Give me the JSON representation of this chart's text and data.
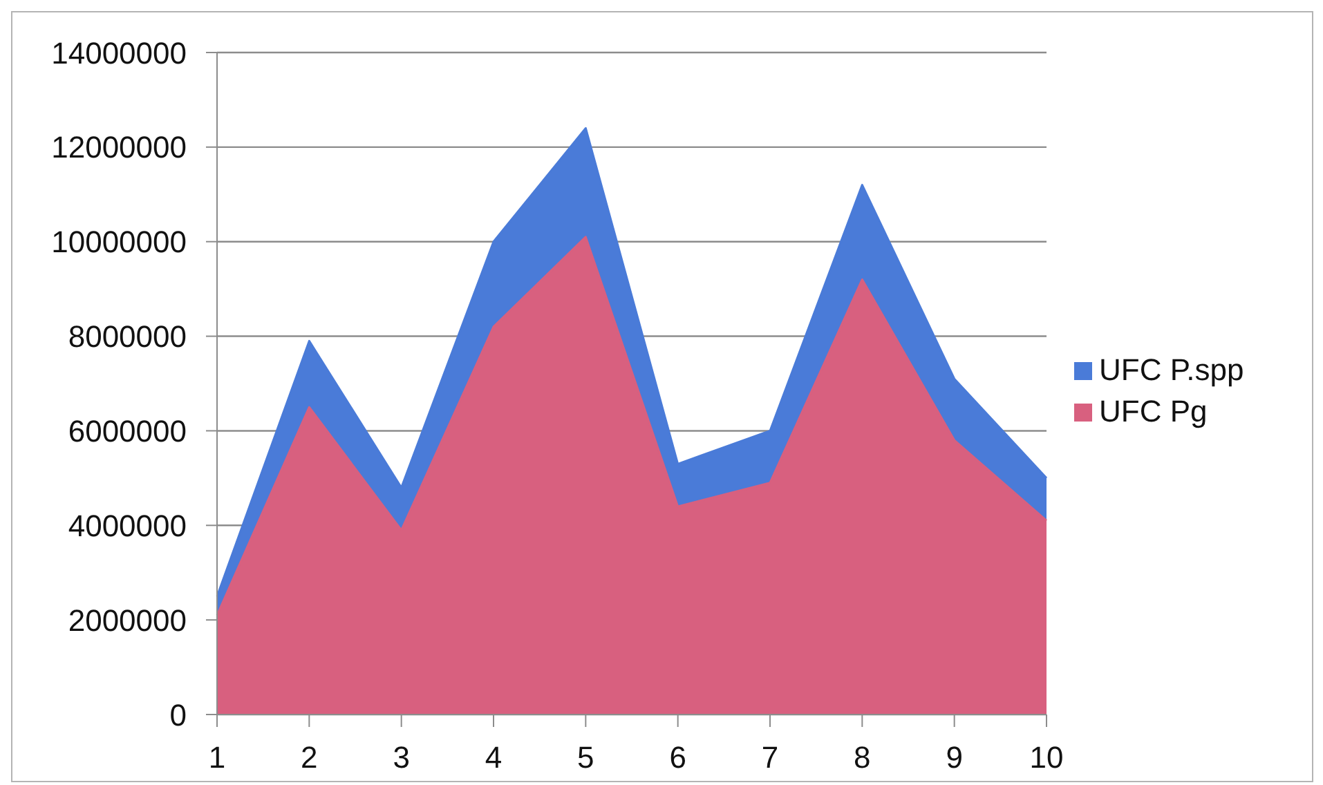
{
  "chart_data": {
    "type": "area",
    "categories": [
      "1",
      "2",
      "3",
      "4",
      "5",
      "6",
      "7",
      "8",
      "9",
      "10"
    ],
    "series": [
      {
        "name": "UFC P.spp",
        "color": "#4a7bd8",
        "values": [
          2500000,
          7900000,
          4800000,
          10000000,
          12400000,
          5300000,
          6000000,
          11200000,
          7100000,
          5000000
        ]
      },
      {
        "name": "UFC Pg",
        "color": "#d8607f",
        "values": [
          2100000,
          6500000,
          3900000,
          8200000,
          10100000,
          4400000,
          4900000,
          9200000,
          5800000,
          4100000
        ]
      }
    ],
    "ylim": [
      0,
      14000000
    ],
    "yticks": [
      0,
      2000000,
      4000000,
      6000000,
      8000000,
      10000000,
      12000000,
      14000000
    ],
    "grid": "y",
    "legend": "right"
  }
}
